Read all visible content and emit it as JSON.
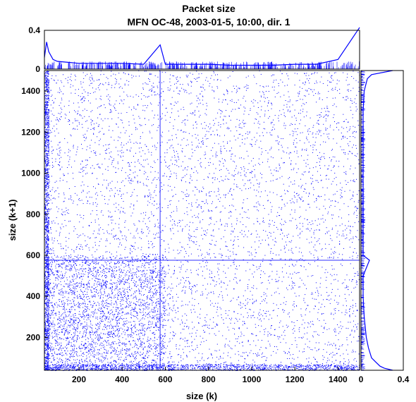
{
  "chart_data": [
    {
      "panel": "scatter",
      "type": "scatter",
      "title": "Packet size",
      "subtitle": "MFN OC-48, 2003-01-5, 10:00, dir. 1",
      "xlabel": "size (k)",
      "ylabel": "size (k+1)",
      "xlim": [
        40,
        1500
      ],
      "ylim": [
        40,
        1500
      ],
      "xticks": [
        200,
        400,
        600,
        800,
        1000,
        1200,
        1400
      ],
      "yticks": [
        200,
        400,
        600,
        800,
        1000,
        1200,
        1400
      ],
      "grid": false,
      "color": "#0000ff",
      "density_regions": [
        {
          "x": [
            40,
            60
          ],
          "y": [
            40,
            1500
          ],
          "density": "very high"
        },
        {
          "x": [
            40,
            1500
          ],
          "y": [
            40,
            70
          ],
          "density": "very high"
        },
        {
          "x": [
            40,
            600
          ],
          "y": [
            40,
            600
          ],
          "density": "high"
        },
        {
          "x": [
            40,
            1500
          ],
          "y": [
            40,
            1500
          ],
          "density": "low"
        }
      ],
      "lines": [
        {
          "orientation": "vertical",
          "x": 576
        },
        {
          "orientation": "horizontal",
          "y": 576
        },
        {
          "orientation": "vertical",
          "x": 1500
        },
        {
          "orientation": "horizontal",
          "y": 1500
        }
      ]
    },
    {
      "panel": "top-marginal",
      "type": "line",
      "xlabel": "size (k)",
      "xlim": [
        40,
        1500
      ],
      "ylim": [
        0,
        0.4
      ],
      "yticks": [
        0,
        0.4
      ],
      "color": "#0000ff",
      "x": [
        40,
        50,
        60,
        80,
        100,
        150,
        200,
        300,
        400,
        500,
        576,
        600,
        700,
        800,
        900,
        1000,
        1100,
        1200,
        1300,
        1400,
        1500
      ],
      "y": [
        0.12,
        0.28,
        0.18,
        0.1,
        0.08,
        0.07,
        0.06,
        0.06,
        0.06,
        0.05,
        0.25,
        0.05,
        0.05,
        0.05,
        0.04,
        0.04,
        0.04,
        0.05,
        0.05,
        0.1,
        0.45
      ]
    },
    {
      "panel": "right-marginal",
      "type": "line",
      "ylabel": "size (k+1)",
      "ylim": [
        40,
        1500
      ],
      "xlim": [
        0,
        0.4
      ],
      "xticks": [
        0,
        0.4
      ],
      "color": "#0000ff",
      "y": [
        40,
        50,
        60,
        80,
        100,
        150,
        200,
        300,
        400,
        500,
        576,
        600,
        700,
        800,
        900,
        1000,
        1100,
        1200,
        1300,
        1400,
        1460,
        1480,
        1500
      ],
      "x": [
        0.3,
        0.22,
        0.18,
        0.14,
        0.1,
        0.07,
        0.05,
        0.03,
        0.02,
        0.02,
        0.08,
        0.02,
        0.02,
        0.02,
        0.02,
        0.02,
        0.02,
        0.02,
        0.02,
        0.03,
        0.06,
        0.1,
        0.3
      ]
    }
  ]
}
